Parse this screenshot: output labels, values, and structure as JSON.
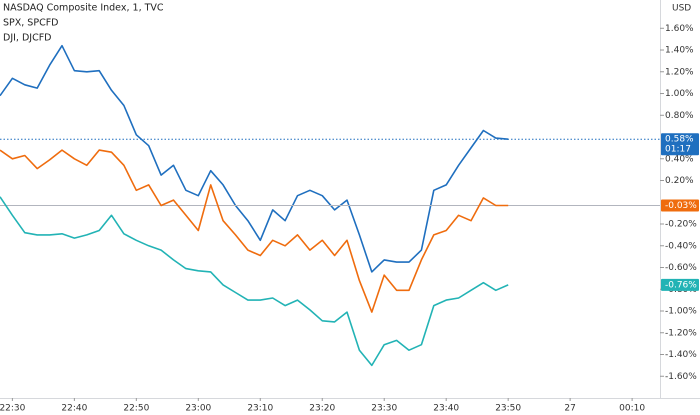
{
  "chart_data": {
    "type": "line",
    "y_label": "USD",
    "countdown": "01:17",
    "x": [
      1348,
      1350,
      1352,
      1354,
      1356,
      1358,
      1360,
      1362,
      1364,
      1366,
      1368,
      1370,
      1372,
      1374,
      1376,
      1378,
      1380,
      1382,
      1384,
      1386,
      1388,
      1390,
      1392,
      1394,
      1396,
      1398,
      1400,
      1402,
      1404,
      1406,
      1408,
      1410,
      1412,
      1414,
      1416,
      1418,
      1420,
      1422,
      1424,
      1426,
      1428,
      1430
    ],
    "series": [
      {
        "name": "NASDAQ Composite Index, 1, TVC",
        "color": "#1f6fbf",
        "price_line": "dotted",
        "last_label": "0.58%",
        "values": [
          0.98,
          1.14,
          1.08,
          1.05,
          1.26,
          1.44,
          1.21,
          1.2,
          1.21,
          1.03,
          0.89,
          0.62,
          0.52,
          0.25,
          0.34,
          0.11,
          0.06,
          0.29,
          0.16,
          -0.03,
          -0.17,
          -0.35,
          -0.07,
          -0.17,
          0.06,
          0.11,
          0.06,
          -0.07,
          0.02,
          -0.3,
          -0.64,
          -0.53,
          -0.55,
          -0.55,
          -0.44,
          0.11,
          0.16,
          0.34,
          0.5,
          0.66,
          0.59,
          0.58
        ]
      },
      {
        "name": "SPX, SPCFD",
        "color": "#ef6c0e",
        "price_line": "solid",
        "last_label": "-0.03%",
        "values": [
          0.48,
          0.4,
          0.43,
          0.31,
          0.39,
          0.48,
          0.4,
          0.34,
          0.48,
          0.46,
          0.34,
          0.11,
          0.16,
          -0.03,
          0.02,
          -0.12,
          -0.26,
          0.16,
          -0.17,
          -0.3,
          -0.44,
          -0.49,
          -0.35,
          -0.4,
          -0.3,
          -0.44,
          -0.35,
          -0.49,
          -0.35,
          -0.72,
          -1.01,
          -0.67,
          -0.81,
          -0.81,
          -0.53,
          -0.3,
          -0.26,
          -0.12,
          -0.17,
          0.04,
          -0.03,
          -0.03
        ]
      },
      {
        "name": "DJI, DJCFD",
        "color": "#22b3b5",
        "last_label": "-0.76%",
        "values": [
          0.05,
          -0.12,
          -0.28,
          -0.3,
          -0.3,
          -0.29,
          -0.33,
          -0.3,
          -0.26,
          -0.12,
          -0.29,
          -0.35,
          -0.4,
          -0.44,
          -0.53,
          -0.61,
          -0.63,
          -0.64,
          -0.76,
          -0.83,
          -0.9,
          -0.9,
          -0.88,
          -0.95,
          -0.9,
          -0.99,
          -1.09,
          -1.1,
          -1.01,
          -1.36,
          -1.5,
          -1.31,
          -1.27,
          -1.36,
          -1.31,
          -0.95,
          -0.9,
          -0.88,
          -0.81,
          -0.74,
          -0.81,
          -0.76
        ]
      }
    ],
    "xlim": [
      1348,
      1454.5
    ],
    "ylim": [
      -1.8,
      1.86
    ],
    "xticks": [
      {
        "value": 1350,
        "label": "22:30"
      },
      {
        "value": 1360,
        "label": "22:40"
      },
      {
        "value": 1370,
        "label": "22:50"
      },
      {
        "value": 1380,
        "label": "23:00"
      },
      {
        "value": 1390,
        "label": "23:10"
      },
      {
        "value": 1400,
        "label": "23:20"
      },
      {
        "value": 1410,
        "label": "23:30"
      },
      {
        "value": 1420,
        "label": "23:40"
      },
      {
        "value": 1430,
        "label": "23:50"
      },
      {
        "value": 1440,
        "label": "27"
      },
      {
        "value": 1450,
        "label": "00:10"
      }
    ],
    "yticks": [
      {
        "value": 1.6,
        "label": "1.60%"
      },
      {
        "value": 1.4,
        "label": "1.40%"
      },
      {
        "value": 1.2,
        "label": "1.20%"
      },
      {
        "value": 1.0,
        "label": "1.00%"
      },
      {
        "value": 0.8,
        "label": "0.80%"
      },
      {
        "value": 0.4,
        "label": "0.40%"
      },
      {
        "value": 0.2,
        "label": "0.20%"
      },
      {
        "value": -0.2,
        "label": "-0.20%"
      },
      {
        "value": -0.4,
        "label": "-0.40%"
      },
      {
        "value": -0.6,
        "label": "-0.60%"
      },
      {
        "value": -0.8,
        "label": "-0.80%"
      },
      {
        "value": -1.0,
        "label": "-1.00%"
      },
      {
        "value": -1.2,
        "label": "-1.20%"
      },
      {
        "value": -1.4,
        "label": "-1.40%"
      },
      {
        "value": -1.6,
        "label": "-1.60%"
      }
    ]
  }
}
